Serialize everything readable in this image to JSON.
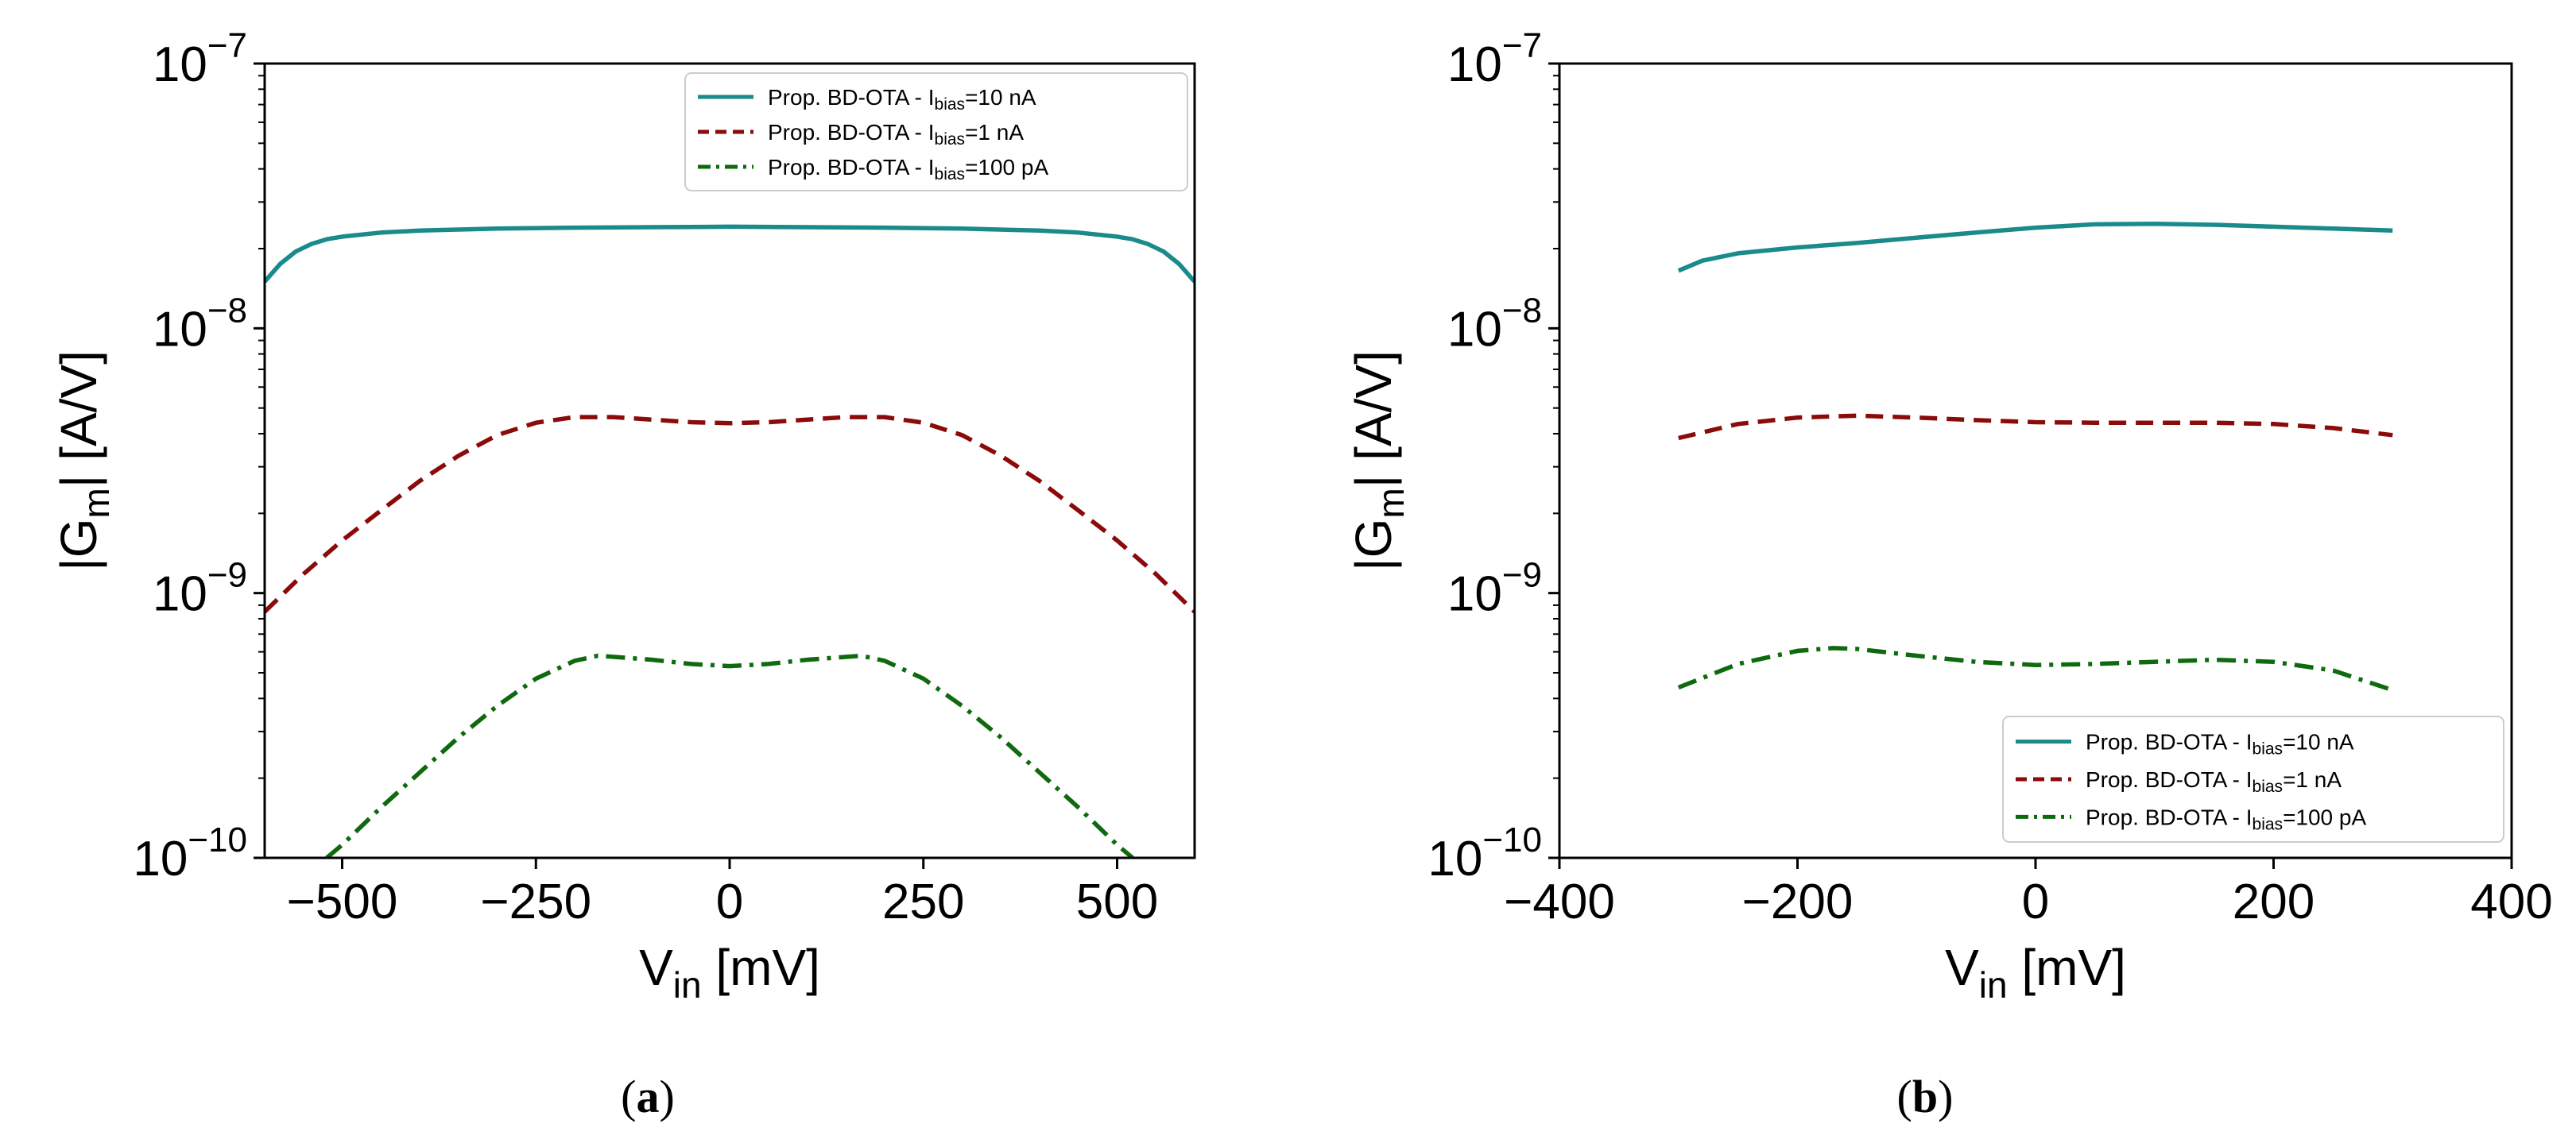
{
  "series_styles": [
    {
      "color": "#1a8a8a",
      "dash": "solid"
    },
    {
      "color": "#8b0a0a",
      "dash": "dashed"
    },
    {
      "color": "#0f6a0f",
      "dash": "dashdot"
    }
  ],
  "chart_data": [
    {
      "type": "line",
      "caption": "(a)",
      "xlabel": {
        "main": "V",
        "sub": "in",
        "unit": " [mV]"
      },
      "ylabel": {
        "pre": "|G",
        "sub": "m",
        "post": "| [A/V]"
      },
      "yscale": "log",
      "xlim": [
        -600,
        600
      ],
      "ylim": [
        1e-10,
        1e-07
      ],
      "xticks": [
        -500,
        -250,
        0,
        250,
        500
      ],
      "xtick_labels": [
        "−500",
        "−250",
        "0",
        "250",
        "500"
      ],
      "yticks": [
        {
          "base": "10",
          "exp": "−10",
          "value": 1e-10
        },
        {
          "base": "10",
          "exp": "−9",
          "value": 1e-09
        },
        {
          "base": "10",
          "exp": "−8",
          "value": 1e-08
        },
        {
          "base": "10",
          "exp": "−7",
          "value": 1e-07
        }
      ],
      "legend_position": "upper right",
      "legend": [
        {
          "pre": "Prop. BD-OTA - I",
          "sub": "bias",
          "post": "=10 nA"
        },
        {
          "pre": "Prop. BD-OTA - I",
          "sub": "bias",
          "post": "=1 nA"
        },
        {
          "pre": "Prop. BD-OTA - I",
          "sub": "bias",
          "post": "=100 pA"
        }
      ],
      "series": [
        {
          "name": "Prop. BD-OTA - Ibias=10 nA",
          "x": [
            -600,
            -580,
            -560,
            -540,
            -520,
            -500,
            -450,
            -400,
            -300,
            -200,
            -100,
            0,
            100,
            200,
            300,
            400,
            450,
            500,
            520,
            540,
            560,
            580,
            600
          ],
          "y": [
            1.5e-08,
            1.75e-08,
            1.95e-08,
            2.08e-08,
            2.17e-08,
            2.22e-08,
            2.3e-08,
            2.34e-08,
            2.38e-08,
            2.4e-08,
            2.41e-08,
            2.42e-08,
            2.41e-08,
            2.4e-08,
            2.38e-08,
            2.34e-08,
            2.3e-08,
            2.22e-08,
            2.17e-08,
            2.08e-08,
            1.95e-08,
            1.75e-08,
            1.5e-08
          ]
        },
        {
          "name": "Prop. BD-OTA - Ibias=1 nA",
          "x": [
            -600,
            -550,
            -500,
            -450,
            -400,
            -350,
            -300,
            -250,
            -200,
            -150,
            -100,
            -50,
            0,
            50,
            100,
            150,
            200,
            250,
            300,
            350,
            400,
            450,
            500,
            550,
            600
          ],
          "y": [
            8.5e-10,
            1.18e-09,
            1.58e-09,
            2.05e-09,
            2.65e-09,
            3.3e-09,
            3.95e-09,
            4.4e-09,
            4.62e-09,
            4.62e-09,
            4.52e-09,
            4.42e-09,
            4.38e-09,
            4.42e-09,
            4.52e-09,
            4.62e-09,
            4.62e-09,
            4.4e-09,
            3.95e-09,
            3.3e-09,
            2.65e-09,
            2.05e-09,
            1.58e-09,
            1.18e-09,
            8.5e-10
          ]
        },
        {
          "name": "Prop. BD-OTA - Ibias=100 pA",
          "x": [
            -520,
            -500,
            -450,
            -400,
            -350,
            -300,
            -250,
            -200,
            -170,
            -100,
            -50,
            0,
            50,
            100,
            170,
            200,
            250,
            300,
            350,
            400,
            450,
            500,
            520
          ],
          "y": [
            1e-10,
            1.12e-10,
            1.55e-10,
            2.1e-10,
            2.85e-10,
            3.75e-10,
            4.75e-10,
            5.55e-10,
            5.8e-10,
            5.6e-10,
            5.4e-10,
            5.3e-10,
            5.4e-10,
            5.6e-10,
            5.8e-10,
            5.55e-10,
            4.75e-10,
            3.75e-10,
            2.85e-10,
            2.1e-10,
            1.55e-10,
            1.12e-10,
            1e-10
          ]
        }
      ]
    },
    {
      "type": "line",
      "caption": "(b)",
      "xlabel": {
        "main": "V",
        "sub": "in",
        "unit": " [mV]"
      },
      "ylabel": {
        "pre": "|G",
        "sub": "m",
        "post": "| [A/V]"
      },
      "yscale": "log",
      "xlim": [
        -400,
        400
      ],
      "ylim": [
        1e-10,
        1e-07
      ],
      "xticks": [
        -400,
        -200,
        0,
        200,
        400
      ],
      "xtick_labels": [
        "−400",
        "−200",
        "0",
        "200",
        "400"
      ],
      "yticks": [
        {
          "base": "10",
          "exp": "−10",
          "value": 1e-10
        },
        {
          "base": "10",
          "exp": "−9",
          "value": 1e-09
        },
        {
          "base": "10",
          "exp": "−8",
          "value": 1e-08
        },
        {
          "base": "10",
          "exp": "−7",
          "value": 1e-07
        }
      ],
      "legend_position": "lower right",
      "legend": [
        {
          "pre": "Prop. BD-OTA - I",
          "sub": "bias",
          "post": "=10 nA"
        },
        {
          "pre": "Prop. BD-OTA - I",
          "sub": "bias",
          "post": "=1 nA"
        },
        {
          "pre": "Prop. BD-OTA - I",
          "sub": "bias",
          "post": "=100 pA"
        }
      ],
      "series": [
        {
          "name": "Prop. BD-OTA - Ibias=10 nA",
          "x": [
            -300,
            -280,
            -250,
            -200,
            -150,
            -100,
            -50,
            0,
            50,
            100,
            150,
            200,
            250,
            300
          ],
          "y": [
            1.65e-08,
            1.8e-08,
            1.92e-08,
            2.02e-08,
            2.1e-08,
            2.2e-08,
            2.3e-08,
            2.4e-08,
            2.47e-08,
            2.48e-08,
            2.46e-08,
            2.42e-08,
            2.38e-08,
            2.34e-08
          ]
        },
        {
          "name": "Prop. BD-OTA - Ibias=1 nA",
          "x": [
            -300,
            -250,
            -200,
            -150,
            -100,
            -50,
            0,
            50,
            100,
            150,
            200,
            250,
            300
          ],
          "y": [
            3.85e-09,
            4.35e-09,
            4.6e-09,
            4.68e-09,
            4.6e-09,
            4.5e-09,
            4.42e-09,
            4.4e-09,
            4.4e-09,
            4.4e-09,
            4.35e-09,
            4.2e-09,
            3.95e-09
          ]
        },
        {
          "name": "Prop. BD-OTA - Ibias=100 pA",
          "x": [
            -300,
            -250,
            -200,
            -170,
            -150,
            -100,
            -50,
            0,
            50,
            100,
            150,
            200,
            250,
            300
          ],
          "y": [
            4.4e-10,
            5.4e-10,
            6.05e-10,
            6.2e-10,
            6.15e-10,
            5.8e-10,
            5.5e-10,
            5.35e-10,
            5.4e-10,
            5.5e-10,
            5.6e-10,
            5.5e-10,
            5.1e-10,
            4.3e-10
          ]
        }
      ]
    }
  ]
}
